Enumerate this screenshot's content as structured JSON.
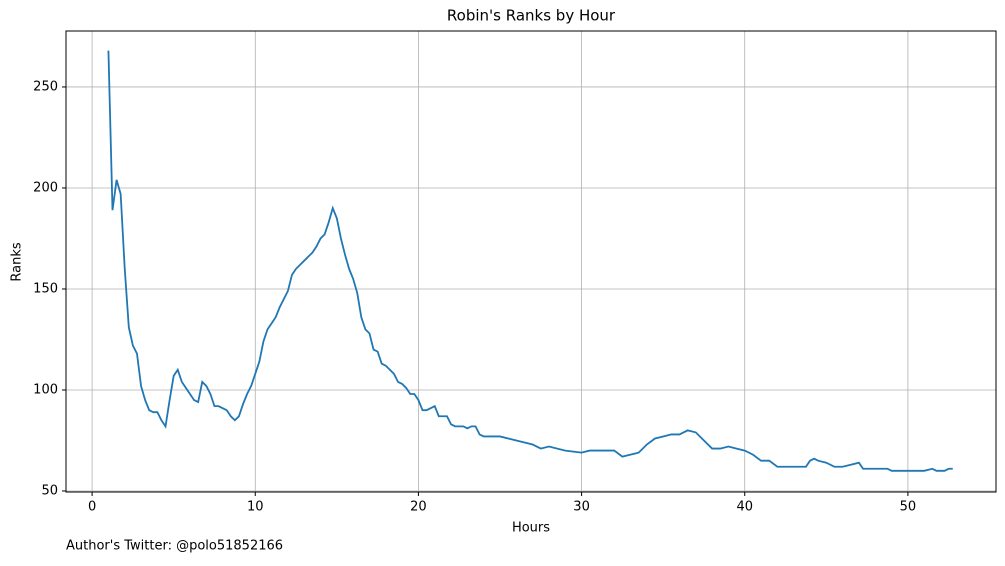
{
  "chart_data": {
    "type": "line",
    "title": "Robin's Ranks by Hour",
    "x_label": "Hours",
    "y_label": "Ranks",
    "annotation": "Author's Twitter: @polo51852166",
    "color": "#1f77b4",
    "grid": true,
    "xlim": [
      -1.6,
      55.4
    ],
    "ylim": [
      49.5,
      277.7
    ],
    "xticks": [
      0,
      10,
      20,
      30,
      40,
      50
    ],
    "yticks": [
      50,
      100,
      150,
      200,
      250
    ],
    "x": [
      1,
      1.25,
      1.5,
      1.75,
      2,
      2.25,
      2.5,
      2.75,
      3,
      3.25,
      3.5,
      3.75,
      4,
      4.25,
      4.5,
      4.75,
      5,
      5.25,
      5.5,
      5.75,
      6,
      6.25,
      6.5,
      6.75,
      7,
      7.25,
      7.5,
      7.75,
      8,
      8.25,
      8.5,
      8.75,
      9,
      9.25,
      9.5,
      9.75,
      10,
      10.25,
      10.5,
      10.75,
      11,
      11.25,
      11.5,
      11.75,
      12,
      12.25,
      12.5,
      12.75,
      13,
      13.25,
      13.5,
      13.75,
      14,
      14.25,
      14.5,
      14.75,
      15,
      15.25,
      15.5,
      15.75,
      16,
      16.25,
      16.5,
      16.75,
      17,
      17.25,
      17.5,
      17.75,
      18,
      18.25,
      18.5,
      18.75,
      19,
      19.25,
      19.5,
      19.75,
      20,
      20.25,
      20.5,
      20.75,
      21,
      21.25,
      21.5,
      21.75,
      22,
      22.25,
      22.5,
      22.75,
      23,
      23.25,
      23.5,
      23.75,
      24,
      25,
      26,
      27,
      27.5,
      28,
      29,
      30,
      30.5,
      31,
      32,
      32.5,
      33,
      33.5,
      34,
      34.5,
      35,
      35.5,
      36,
      36.5,
      37,
      37.5,
      38,
      38.5,
      39,
      39.5,
      40,
      40.5,
      41,
      41.5,
      42,
      43,
      43.75,
      44,
      44.25,
      44.5,
      45,
      45.5,
      46,
      46.5,
      47,
      47.25,
      48,
      48.75,
      49,
      50,
      51,
      51.5,
      51.75,
      52.25,
      52.5,
      52.75
    ],
    "values": [
      268,
      189,
      204,
      197,
      160,
      131,
      122,
      118,
      102,
      95,
      90,
      89,
      89,
      85,
      82,
      95,
      107,
      110,
      104,
      101,
      98,
      95,
      94,
      104,
      102,
      98,
      92,
      92,
      91,
      90,
      87,
      85,
      87,
      93,
      98,
      102,
      108,
      114,
      124,
      130,
      133,
      136,
      141,
      145,
      149,
      157,
      160,
      162,
      164,
      166,
      168,
      171,
      175,
      177,
      183,
      190,
      185,
      175,
      167,
      160,
      155,
      148,
      136,
      130,
      128,
      120,
      119,
      113,
      112,
      110,
      108,
      104,
      103,
      101,
      98,
      98,
      95,
      90,
      90,
      91,
      92,
      87,
      87,
      87,
      83,
      82,
      82,
      82,
      81,
      82,
      82,
      78,
      77,
      77,
      75,
      73,
      71,
      72,
      70,
      69,
      70,
      70,
      70,
      67,
      68,
      69,
      73,
      76,
      77,
      78,
      78,
      80,
      79,
      75,
      71,
      71,
      72,
      71,
      70,
      68,
      65,
      65,
      62,
      62,
      62,
      65,
      66,
      65,
      64,
      62,
      62,
      63,
      64,
      61,
      61,
      61,
      60,
      60,
      60,
      61,
      60,
      60,
      61,
      61
    ]
  }
}
